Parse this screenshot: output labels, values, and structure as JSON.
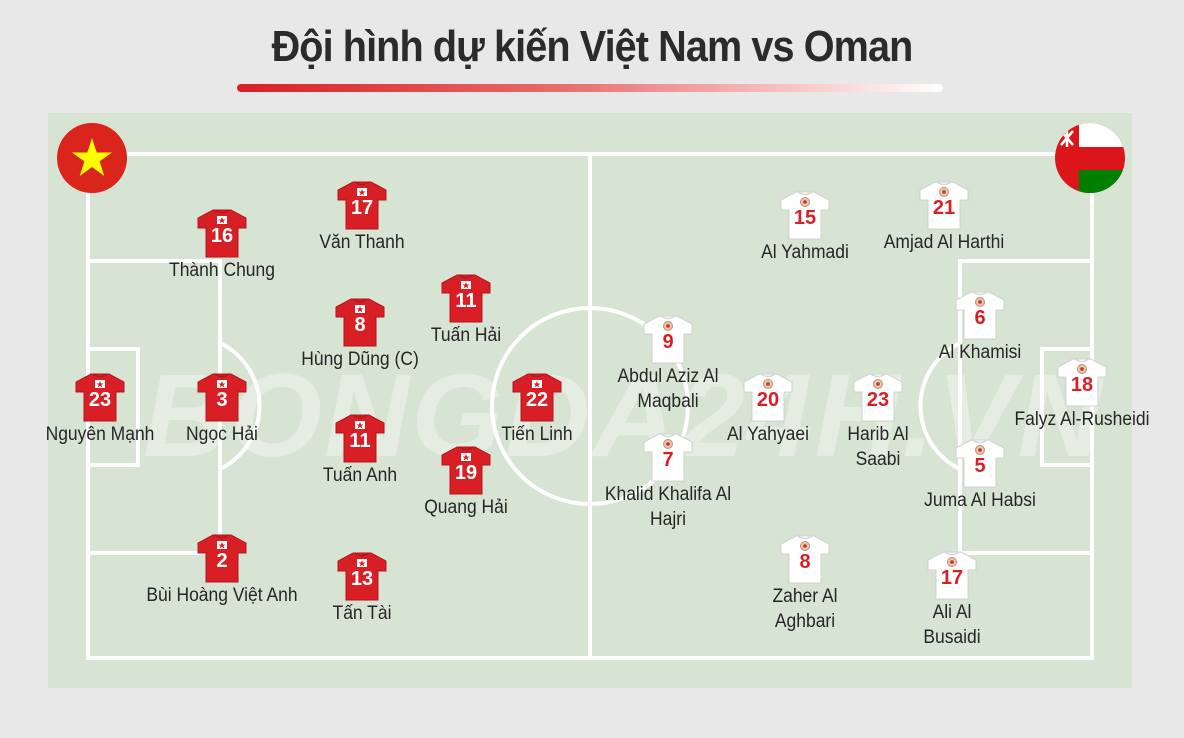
{
  "title": "Đội hình dự kiến Việt Nam vs Oman",
  "watermark": "BONGDA24H.VN",
  "colors": {
    "vietnam_shirt": "#d81f26",
    "oman_shirt": "#ffffff",
    "pitch": "#d7e3d3",
    "title_bar": "#d81f26"
  },
  "flags": {
    "left": "vietnam-flag-icon",
    "right": "oman-flag-icon"
  },
  "vietnam": {
    "players": [
      {
        "number": "23",
        "name": "Nguyên Mạnh"
      },
      {
        "number": "3",
        "name": "Ngọc Hải"
      },
      {
        "number": "16",
        "name": "Thành Chung"
      },
      {
        "number": "2",
        "name": "Bùi Hoàng Việt Anh"
      },
      {
        "number": "17",
        "name": "Văn Thanh"
      },
      {
        "number": "8",
        "name": "Hùng Dũng (C)"
      },
      {
        "number": "11",
        "name": "Tuấn Anh"
      },
      {
        "number": "13",
        "name": "Tấn Tài"
      },
      {
        "number": "11",
        "name": "Tuấn Hải"
      },
      {
        "number": "19",
        "name": "Quang Hải"
      },
      {
        "number": "22",
        "name": "Tiến Linh"
      }
    ]
  },
  "oman": {
    "players": [
      {
        "number": "15",
        "name": "Al Yahmadi"
      },
      {
        "number": "21",
        "name": "Amjad Al Harthi"
      },
      {
        "number": "6",
        "name": "Al Khamisi"
      },
      {
        "number": "9",
        "name": "Abdul Aziz Al Maqbali"
      },
      {
        "number": "20",
        "name": "Al Yahyaei"
      },
      {
        "number": "23",
        "name": "Harib Al Saabi"
      },
      {
        "number": "7",
        "name": "Khalid Khalifa Al Hajri"
      },
      {
        "number": "5",
        "name": "Juma Al Habsi"
      },
      {
        "number": "18",
        "name": "Falyz Al-Rusheidi"
      },
      {
        "number": "8",
        "name": "Zaher Al Aghbari"
      },
      {
        "number": "17",
        "name": "Ali Al Busaidi"
      }
    ]
  }
}
